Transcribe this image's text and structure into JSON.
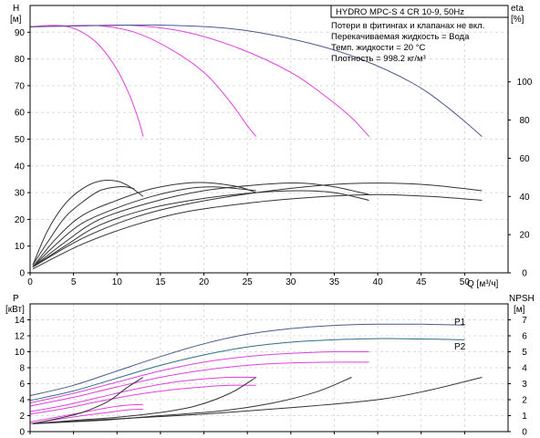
{
  "chart_data": [
    {
      "type": "line",
      "panel": "upper",
      "title": "HYDRO MPC-S 4 CR 10-9, 50Hz",
      "notes": [
        "Потери в фитингах и клапанах не вкл.",
        "Перекачиваемая жидкость = Вода",
        "Темп. жидкости = 20 °C",
        "Плотность = 998.2 кг/м³"
      ],
      "ylabel": [
        "H",
        "[м]"
      ],
      "y2label": [
        "eta",
        "[%]"
      ],
      "xlabel": "Q [м³/ч]",
      "xlim": [
        0,
        55
      ],
      "ylim": [
        0,
        100
      ],
      "y2lim": [
        0,
        140
      ],
      "x_ticks": [
        "0",
        "5",
        "10",
        "15",
        "20",
        "25",
        "30",
        "35",
        "40",
        "45",
        "50"
      ],
      "y_ticks": [
        "0",
        "10",
        "20",
        "30",
        "40",
        "50",
        "60",
        "70",
        "80",
        "90"
      ],
      "y2_ticks": [
        "0",
        "20",
        "40",
        "60",
        "80",
        "100"
      ],
      "series": [
        {
          "color": "#e040e0",
          "points": [
            [
              0,
              92
            ],
            [
              2,
              92.5
            ],
            [
              4,
              92.3
            ],
            [
              6,
              90
            ],
            [
              8,
              85
            ],
            [
              10,
              76
            ],
            [
              11.5,
              66
            ],
            [
              12.5,
              57
            ],
            [
              13,
              51
            ]
          ]
        },
        {
          "color": "#e040e0",
          "points": [
            [
              0,
              92
            ],
            [
              4,
              92.4
            ],
            [
              8,
              92.4
            ],
            [
              12,
              90
            ],
            [
              16,
              84
            ],
            [
              20,
              75
            ],
            [
              23,
              64
            ],
            [
              25,
              55
            ],
            [
              26,
              51
            ]
          ]
        },
        {
          "color": "#e040e0",
          "points": [
            [
              0,
              92
            ],
            [
              6,
              92.4
            ],
            [
              12,
              92.5
            ],
            [
              18,
              90
            ],
            [
              24,
              84
            ],
            [
              30,
              75
            ],
            [
              34,
              66
            ],
            [
              37,
              58
            ],
            [
              39,
              51
            ]
          ]
        },
        {
          "color": "#4a5a8a",
          "points": [
            [
              0,
              92
            ],
            [
              8,
              92.5
            ],
            [
              16,
              92.6
            ],
            [
              24,
              91
            ],
            [
              32,
              86
            ],
            [
              38,
              80
            ],
            [
              44,
              71
            ],
            [
              48,
              62
            ],
            [
              52,
              51
            ]
          ]
        },
        {
          "color": "#333333",
          "axis": "y2",
          "points": [
            [
              0.3,
              4
            ],
            [
              2,
              22
            ],
            [
              4,
              36
            ],
            [
              6,
              44
            ],
            [
              8,
              48
            ],
            [
              10,
              48
            ],
            [
              11.5,
              45
            ],
            [
              13,
              40
            ]
          ]
        },
        {
          "color": "#333333",
          "axis": "y2",
          "points": [
            [
              0.3,
              4
            ],
            [
              2,
              16
            ],
            [
              4,
              29
            ],
            [
              6,
              37
            ],
            [
              8,
              43
            ],
            [
              10,
              45
            ],
            [
              11,
              45
            ],
            [
              12,
              44
            ]
          ]
        },
        {
          "color": "#333333",
          "axis": "y2",
          "points": [
            [
              0.3,
              3
            ],
            [
              3,
              18
            ],
            [
              6,
              30
            ],
            [
              10,
              38
            ],
            [
              14,
              44
            ],
            [
              18,
              47
            ],
            [
              21,
              47
            ],
            [
              24,
              45
            ],
            [
              26,
              42
            ]
          ]
        },
        {
          "color": "#333333",
          "axis": "y2",
          "points": [
            [
              0.3,
              3
            ],
            [
              3,
              15
            ],
            [
              6,
              26
            ],
            [
              10,
              34
            ],
            [
              14,
              40
            ],
            [
              18,
              44
            ],
            [
              21,
              45
            ],
            [
              24,
              44
            ],
            [
              26,
              43
            ]
          ]
        },
        {
          "color": "#333333",
          "axis": "y2",
          "points": [
            [
              0.3,
              3
            ],
            [
              4,
              16
            ],
            [
              8,
              28
            ],
            [
              14,
              37
            ],
            [
              20,
              43
            ],
            [
              26,
              46
            ],
            [
              31,
              47
            ],
            [
              35,
              45
            ],
            [
              39,
              41
            ]
          ]
        },
        {
          "color": "#333333",
          "axis": "y2",
          "points": [
            [
              0.3,
              3
            ],
            [
              4,
              14
            ],
            [
              8,
              25
            ],
            [
              14,
              34
            ],
            [
              20,
              39
            ],
            [
              26,
              42
            ],
            [
              31,
              43
            ],
            [
              35,
              42
            ],
            [
              39,
              38
            ]
          ]
        },
        {
          "color": "#333333",
          "axis": "y2",
          "points": [
            [
              0.3,
              3
            ],
            [
              6,
              18
            ],
            [
              12,
              29
            ],
            [
              18,
              36
            ],
            [
              26,
              42
            ],
            [
              34,
              46
            ],
            [
              40,
              47
            ],
            [
              46,
              46
            ],
            [
              52,
              43
            ]
          ]
        },
        {
          "color": "#333333",
          "axis": "y2",
          "points": [
            [
              0.3,
              2
            ],
            [
              6,
              15
            ],
            [
              12,
              25
            ],
            [
              18,
              32
            ],
            [
              26,
              37
            ],
            [
              34,
              40
            ],
            [
              40,
              41
            ],
            [
              46,
              40
            ],
            [
              52,
              38
            ]
          ]
        }
      ]
    },
    {
      "type": "line",
      "panel": "lower",
      "ylabel": [
        "P",
        "[кВт]"
      ],
      "y2label": [
        "NPSH",
        "[м]"
      ],
      "xlim": [
        0,
        55
      ],
      "ylim": [
        0,
        16
      ],
      "y2lim": [
        0,
        8
      ],
      "y_ticks": [
        "0",
        "2",
        "4",
        "6",
        "8",
        "10",
        "12",
        "14"
      ],
      "y2_ticks": [
        "0",
        "1",
        "2",
        "3",
        "4",
        "5",
        "6",
        "7"
      ],
      "labels": [
        "P1",
        "P2"
      ],
      "series": [
        {
          "name": "P1",
          "color": "#4a5a8a",
          "points": [
            [
              0,
              4.5
            ],
            [
              5,
              5.8
            ],
            [
              10,
              7.6
            ],
            [
              15,
              9.4
            ],
            [
              20,
              11
            ],
            [
              25,
              12.2
            ],
            [
              30,
              12.9
            ],
            [
              35,
              13.3
            ],
            [
              40,
              13.45
            ],
            [
              45,
              13.45
            ],
            [
              50,
              13.35
            ]
          ]
        },
        {
          "name": "P2",
          "color": "#2e6e84",
          "points": [
            [
              0,
              3.9
            ],
            [
              5,
              5.1
            ],
            [
              10,
              6.7
            ],
            [
              15,
              8.3
            ],
            [
              20,
              9.6
            ],
            [
              25,
              10.6
            ],
            [
              30,
              11.2
            ],
            [
              35,
              11.5
            ],
            [
              40,
              11.65
            ],
            [
              45,
              11.6
            ],
            [
              50,
              11.5
            ]
          ]
        },
        {
          "color": "#e040e0",
          "points": [
            [
              0,
              3.6
            ],
            [
              5,
              4.8
            ],
            [
              10,
              6.2
            ],
            [
              15,
              7.6
            ],
            [
              20,
              8.7
            ],
            [
              25,
              9.4
            ],
            [
              30,
              9.8
            ],
            [
              35,
              10
            ],
            [
              39,
              10
            ]
          ]
        },
        {
          "color": "#e040e0",
          "points": [
            [
              0,
              3.2
            ],
            [
              5,
              4.3
            ],
            [
              10,
              5.6
            ],
            [
              15,
              6.8
            ],
            [
              20,
              7.7
            ],
            [
              25,
              8.3
            ],
            [
              30,
              8.6
            ],
            [
              35,
              8.7
            ],
            [
              39,
              8.7
            ]
          ]
        },
        {
          "color": "#e040e0",
          "points": [
            [
              0,
              2.5
            ],
            [
              4,
              3.3
            ],
            [
              8,
              4.3
            ],
            [
              12,
              5.3
            ],
            [
              16,
              6.1
            ],
            [
              20,
              6.6
            ],
            [
              23,
              6.8
            ],
            [
              26,
              6.8
            ]
          ]
        },
        {
          "color": "#e040e0",
          "points": [
            [
              0,
              2.2
            ],
            [
              4,
              2.9
            ],
            [
              8,
              3.8
            ],
            [
              12,
              4.6
            ],
            [
              16,
              5.2
            ],
            [
              20,
              5.6
            ],
            [
              23,
              5.8
            ],
            [
              26,
              5.8
            ]
          ]
        },
        {
          "color": "#e040e0",
          "points": [
            [
              0,
              1.2
            ],
            [
              3,
              1.8
            ],
            [
              6,
              2.4
            ],
            [
              9,
              3.0
            ],
            [
              11,
              3.3
            ],
            [
              13,
              3.4
            ]
          ]
        },
        {
          "color": "#e040e0",
          "points": [
            [
              0,
              1.0
            ],
            [
              3,
              1.5
            ],
            [
              6,
              2.0
            ],
            [
              9,
              2.4
            ],
            [
              11,
              2.7
            ],
            [
              13,
              2.8
            ]
          ]
        },
        {
          "color": "#333333",
          "axis": "y2",
          "points": [
            [
              0.3,
              0.5
            ],
            [
              3,
              0.8
            ],
            [
              6,
              1.2
            ],
            [
              9,
              1.9
            ],
            [
              11,
              2.7
            ],
            [
              13,
              3.4
            ]
          ]
        },
        {
          "color": "#333333",
          "axis": "y2",
          "points": [
            [
              0.3,
              0.5
            ],
            [
              5,
              0.7
            ],
            [
              10,
              0.9
            ],
            [
              15,
              1.2
            ],
            [
              19,
              1.6
            ],
            [
              23,
              2.4
            ],
            [
              26,
              3.4
            ]
          ]
        },
        {
          "color": "#333333",
          "axis": "y2",
          "points": [
            [
              0.3,
              0.5
            ],
            [
              8,
              0.7
            ],
            [
              15,
              1.0
            ],
            [
              22,
              1.3
            ],
            [
              28,
              1.8
            ],
            [
              33,
              2.5
            ],
            [
              37,
              3.4
            ]
          ]
        },
        {
          "color": "#333333",
          "axis": "y2",
          "points": [
            [
              0.3,
              0.5
            ],
            [
              10,
              0.8
            ],
            [
              20,
              1.1
            ],
            [
              30,
              1.5
            ],
            [
              40,
              2.0
            ],
            [
              46,
              2.6
            ],
            [
              52,
              3.4
            ]
          ]
        }
      ]
    }
  ]
}
